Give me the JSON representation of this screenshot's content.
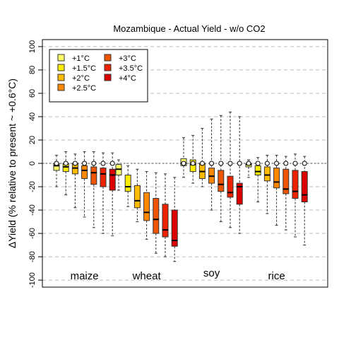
{
  "chart_data": {
    "type": "box",
    "title": "Mozambique - Actual Yield - w/o CO2",
    "ylabel": "ΔYield (% relative to present ~ +0.6°C)",
    "ylim": [
      -106,
      106
    ],
    "yticks": [
      -100,
      -80,
      -60,
      -40,
      -20,
      0,
      20,
      40,
      60,
      80,
      100
    ],
    "grid": "horizontal dashed",
    "legend_position": "top-left",
    "legend": [
      {
        "label": "+1°C",
        "color": "#ffff66"
      },
      {
        "label": "+1.5°C",
        "color": "#ffee00"
      },
      {
        "label": "+2°C",
        "color": "#ffbb00"
      },
      {
        "label": "+2.5°C",
        "color": "#ff8800"
      },
      {
        "label": "+3°C",
        "color": "#ee5500"
      },
      {
        "label": "+3.5°C",
        "color": "#ee2200"
      },
      {
        "label": "+4°C",
        "color": "#dd0000"
      }
    ],
    "groups": [
      {
        "crop": "maize",
        "boxes": [
          {
            "level": "+1°C",
            "min": -20,
            "q1": -6,
            "median": -2,
            "q3": 0,
            "max": 7,
            "mean": 0
          },
          {
            "level": "+1.5°C",
            "min": -27,
            "q1": -7,
            "median": -3,
            "q3": 0,
            "max": 10,
            "mean": 0
          },
          {
            "level": "+2°C",
            "min": -38,
            "q1": -9,
            "median": -4,
            "q3": 0,
            "max": 8,
            "mean": 0
          },
          {
            "level": "+2.5°C",
            "min": -46,
            "q1": -13,
            "median": -6,
            "q3": -2,
            "max": 10,
            "mean": 0
          },
          {
            "level": "+3°C",
            "min": -55,
            "q1": -18,
            "median": -8,
            "q3": -3,
            "max": 10,
            "mean": 0
          },
          {
            "level": "+3.5°C",
            "min": -60,
            "q1": -20,
            "median": -9,
            "q3": -4,
            "max": 9,
            "mean": 0
          },
          {
            "level": "+4°C",
            "min": -62,
            "q1": -23,
            "median": -10,
            "q3": -5,
            "max": 9,
            "mean": 0
          }
        ]
      },
      {
        "crop": "wheat",
        "boxes": [
          {
            "level": "+1°C",
            "min": -23,
            "q1": -10,
            "median": -5,
            "q3": -1,
            "max": 3,
            "mean": null
          },
          {
            "level": "+1.5°C",
            "min": -37,
            "q1": -24,
            "median": -20,
            "q3": -10,
            "max": -2,
            "mean": null
          },
          {
            "level": "+2°C",
            "min": -50,
            "q1": -38,
            "median": -32,
            "q3": -19,
            "max": -5,
            "mean": null
          },
          {
            "level": "+2.5°C",
            "min": -65,
            "q1": -49,
            "median": -42,
            "q3": -25,
            "max": -7,
            "mean": null
          },
          {
            "level": "+3°C",
            "min": -77,
            "q1": -60,
            "median": -48,
            "q3": -30,
            "max": -8,
            "mean": null
          },
          {
            "level": "+3.5°C",
            "min": -80,
            "q1": -63,
            "median": -57,
            "q3": -35,
            "max": -9,
            "mean": null
          },
          {
            "level": "+4°C",
            "min": -84,
            "q1": -71,
            "median": -66,
            "q3": -40,
            "max": -12,
            "mean": null
          }
        ]
      },
      {
        "crop": "soy",
        "boxes": [
          {
            "level": "+1°C",
            "min": -12,
            "q1": -2,
            "median": 0,
            "q3": 4,
            "max": 22,
            "mean": 0
          },
          {
            "level": "+1.5°C",
            "min": -17,
            "q1": -7,
            "median": -1,
            "q3": 3,
            "max": 24,
            "mean": 0
          },
          {
            "level": "+2°C",
            "min": -20,
            "q1": -13,
            "median": -7,
            "q3": 0,
            "max": 30,
            "mean": 0
          },
          {
            "level": "+2.5°C",
            "min": -40,
            "q1": -17,
            "median": -11,
            "q3": -4,
            "max": 38,
            "mean": 0
          },
          {
            "level": "+3°C",
            "min": -50,
            "q1": -24,
            "median": -18,
            "q3": -6,
            "max": 41,
            "mean": 0
          },
          {
            "level": "+3.5°C",
            "min": -55,
            "q1": -29,
            "median": -25,
            "q3": -11,
            "max": 44,
            "mean": 0
          },
          {
            "level": "+4°C",
            "min": -60,
            "q1": -35,
            "median": -20,
            "q3": -17,
            "max": 40,
            "mean": 0
          }
        ]
      },
      {
        "crop": "rice",
        "boxes": [
          {
            "level": "+1°C",
            "min": -12,
            "q1": -3,
            "median": -1,
            "q3": 0,
            "max": 3,
            "mean": 0
          },
          {
            "level": "+1.5°C",
            "min": -33,
            "q1": -10,
            "median": -7,
            "q3": -2,
            "max": 5,
            "mean": 0
          },
          {
            "level": "+2°C",
            "min": -43,
            "q1": -15,
            "median": -10,
            "q3": -3,
            "max": 7,
            "mean": 0
          },
          {
            "level": "+2.5°C",
            "min": -53,
            "q1": -21,
            "median": -16,
            "q3": -4,
            "max": 7,
            "mean": 0
          },
          {
            "level": "+3°C",
            "min": -57,
            "q1": -26,
            "median": -22,
            "q3": -5,
            "max": 6,
            "mean": 0
          },
          {
            "level": "+3.5°C",
            "min": -63,
            "q1": -30,
            "median": -24,
            "q3": -6,
            "max": 8,
            "mean": 0
          },
          {
            "level": "+4°C",
            "min": -70,
            "q1": -33,
            "median": -27,
            "q3": -7,
            "max": 6,
            "mean": 0
          }
        ]
      }
    ]
  }
}
